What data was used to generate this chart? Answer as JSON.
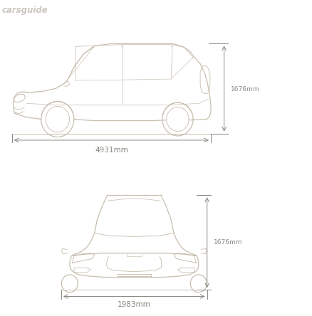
{
  "bg_color": "#ffffff",
  "line_color": "#c8bfb0",
  "dim_line_color": "#888880",
  "text_color": "#888880",
  "watermark_color": "#ccc8c0",
  "label_height": "1676mm",
  "label_length": "4931mm",
  "label_width": "1983mm",
  "watermark": "carsguide"
}
